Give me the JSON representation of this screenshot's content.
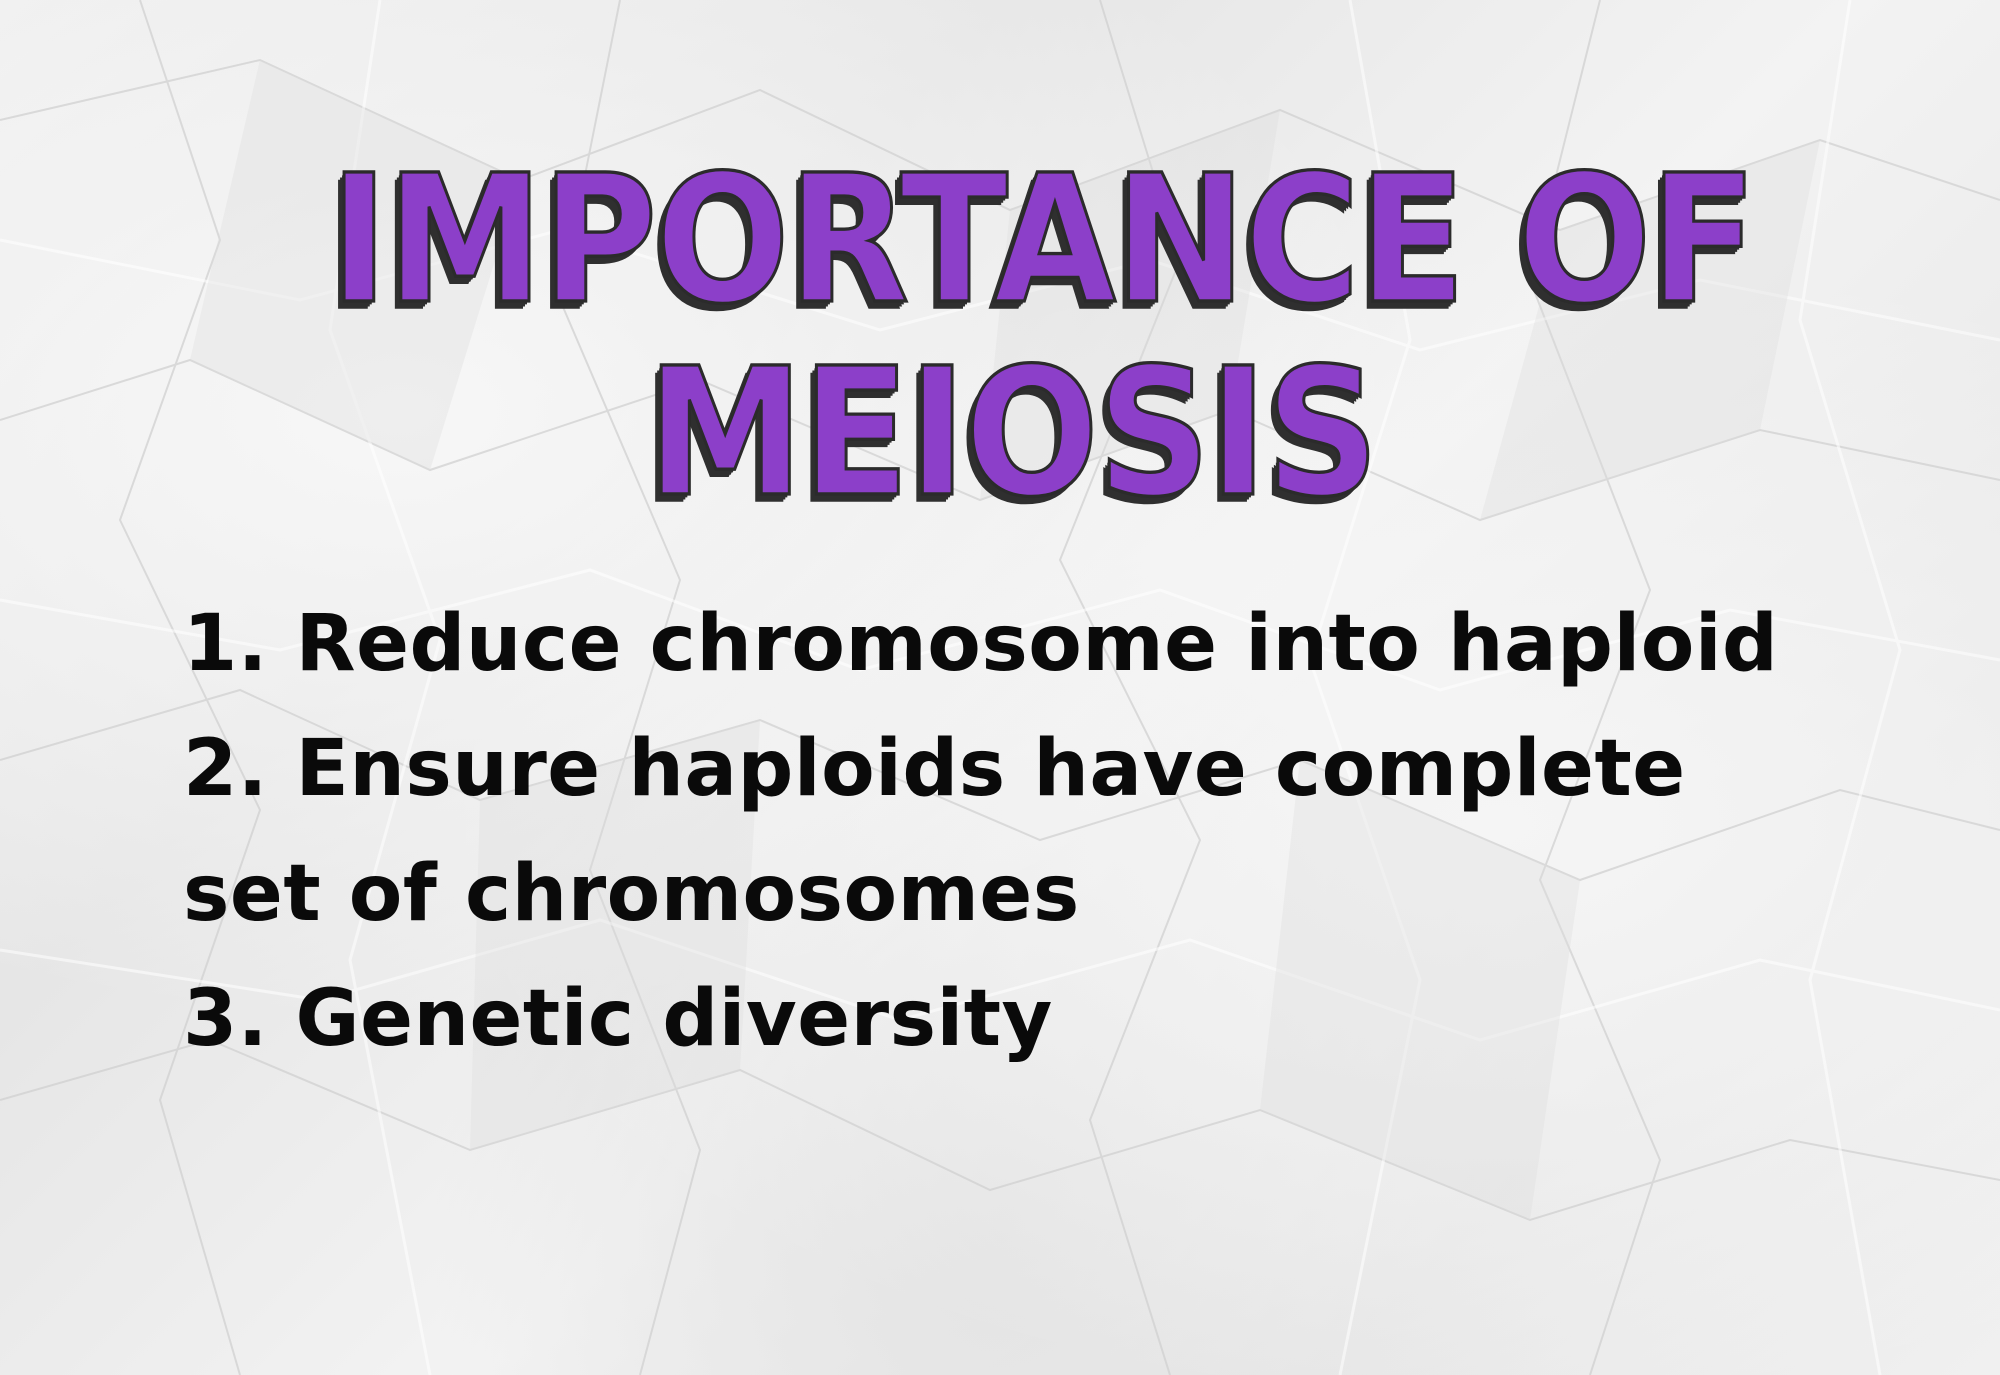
{
  "title": {
    "line1": "Importance of",
    "line2": "Meiosis"
  },
  "points": [
    "1. Reduce chromosome into haploid",
    "2. Ensure haploids have complete set of chromosomes",
    "3. Genetic diversity"
  ],
  "colors": {
    "title_fill": "#8c3fc9",
    "title_shadow": "#2f2f2f",
    "body_text": "#0a0a0a",
    "background": "#ededed"
  }
}
